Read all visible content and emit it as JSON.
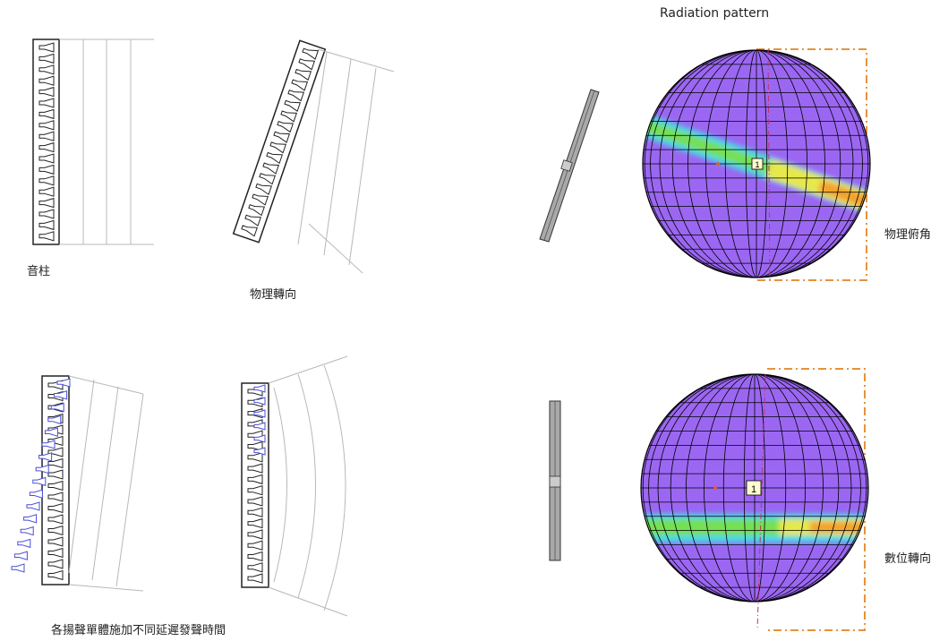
{
  "title": "Radiation pattern",
  "labels": {
    "column": "音柱",
    "physical_steering": "物理轉向",
    "delay_note": "各揚聲單體施加不同延遲發聲時間",
    "physical_tilt": "物理俯角",
    "digital_steering": "數位轉向"
  },
  "marker_label": "1",
  "colors": {
    "sphere_fill": "#9b67f2",
    "grid_line": "#000000",
    "beam_cyan": "#3ee6e6",
    "beam_green": "#7fe13a",
    "beam_yellow": "#f3e94a",
    "beam_orange": "#f59a2a",
    "bracket": "#e8923a",
    "axis_line": "#c0306a",
    "speaker_stroke": "#222222",
    "delayed_speaker_stroke": "#4a4fd6",
    "wavefront": "#b8b8b8"
  },
  "icons": {
    "speaker_unit": "speaker-cone-icon",
    "column_side": "column-speaker-side-icon"
  }
}
